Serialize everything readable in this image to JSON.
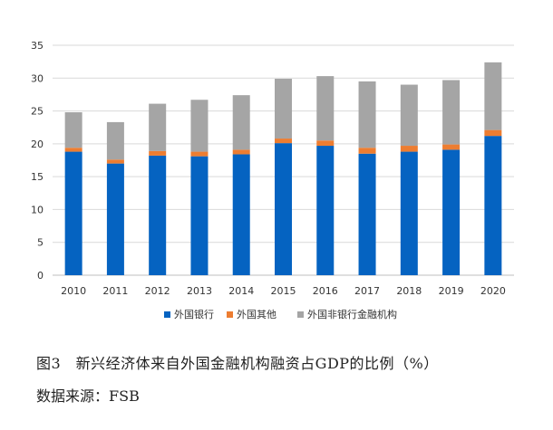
{
  "chart_data": {
    "type": "bar",
    "stacked": true,
    "categories": [
      "2010",
      "2011",
      "2012",
      "2013",
      "2014",
      "2015",
      "2016",
      "2017",
      "2018",
      "2019",
      "2020"
    ],
    "series": [
      {
        "name": "外国银行",
        "color": "#0563C1",
        "values": [
          18.8,
          17.0,
          18.2,
          18.1,
          18.4,
          20.1,
          19.7,
          18.5,
          18.8,
          19.1,
          21.2
        ]
      },
      {
        "name": "外国其他",
        "color": "#ED7D31",
        "values": [
          0.6,
          0.6,
          0.7,
          0.7,
          0.7,
          0.7,
          0.8,
          0.9,
          0.9,
          0.8,
          0.9
        ]
      },
      {
        "name": "外国非银行金融机构",
        "color": "#A5A5A5",
        "values": [
          5.4,
          5.7,
          7.2,
          7.9,
          8.3,
          9.1,
          9.8,
          10.1,
          9.3,
          9.8,
          10.3
        ]
      }
    ],
    "ylim": [
      0,
      35
    ],
    "yticks": [
      0,
      5,
      10,
      15,
      20,
      25,
      30,
      35
    ],
    "grid": true,
    "legend_position": "bottom",
    "title": "",
    "xlabel": "",
    "ylabel": ""
  },
  "caption": "图3　新兴经济体来自外国金融机构融资占GDP的比例（%）",
  "source": "数据来源：FSB"
}
